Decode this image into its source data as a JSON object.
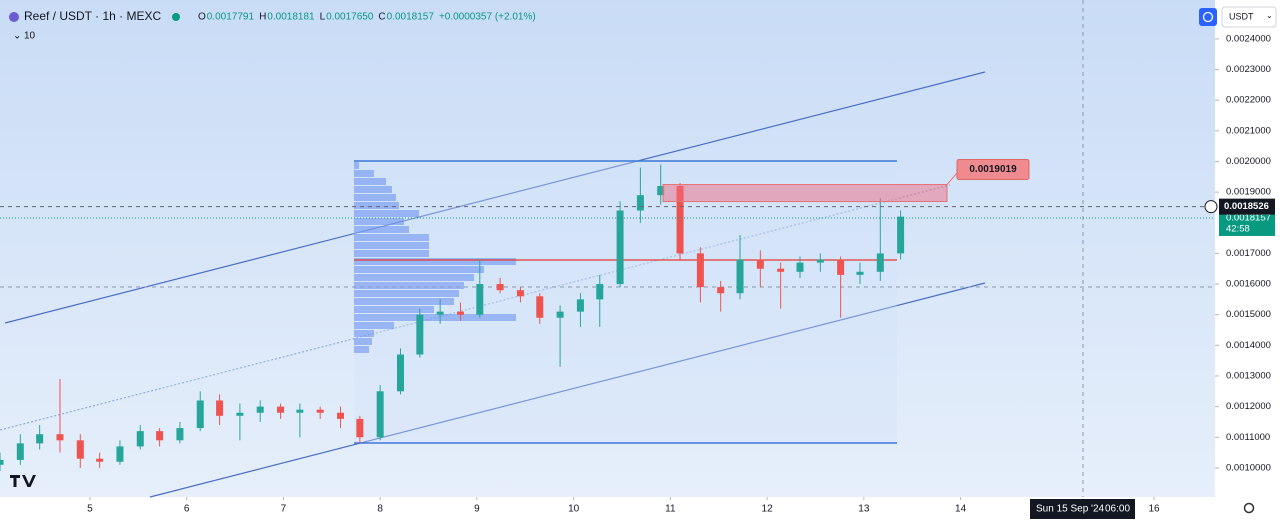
{
  "chart_data": {
    "type": "candlestick",
    "title": "Reef / USDT · 1h · MEXC",
    "ohlc_legend": [
      {
        "label": "O",
        "value": "0.0017791"
      },
      {
        "label": "H",
        "value": "0.0018181"
      },
      {
        "label": "L",
        "value": "0.0017650"
      },
      {
        "label": "C",
        "value": "0.0018157"
      }
    ],
    "change": "+0.0000357 (+2.01%)",
    "indicator_count": "10",
    "currency": "USDT",
    "crosshair_date": "Sun 15 Sep '24",
    "crosshair_time": "06:00",
    "x": [
      4.07,
      4.28,
      4.48,
      4.69,
      4.9,
      5.1,
      5.31,
      5.52,
      5.72,
      5.93,
      6.14,
      6.34,
      6.55,
      6.76,
      6.97,
      7.17,
      7.38,
      7.59,
      7.79,
      8.0,
      8.21,
      8.41,
      8.62,
      8.83,
      9.03,
      9.24,
      9.45,
      9.65,
      9.86,
      10.07,
      10.27,
      10.48,
      10.69,
      10.9,
      11.1,
      11.31,
      11.52,
      11.72,
      11.93,
      12.14,
      12.34,
      12.55,
      12.76,
      12.96,
      13.17,
      13.38
    ],
    "open": [
      0.00101,
      0.001026,
      0.00108,
      0.00111,
      0.00109,
      0.00103,
      0.00102,
      0.00107,
      0.00112,
      0.00109,
      0.00113,
      0.00122,
      0.00117,
      0.00118,
      0.0012,
      0.00118,
      0.00119,
      0.00118,
      0.00116,
      0.0011,
      0.00125,
      0.00137,
      0.0015,
      0.00151,
      0.0015,
      0.0016,
      0.00158,
      0.00156,
      0.00149,
      0.00151,
      0.00155,
      0.0016,
      0.00184,
      0.00189,
      0.00192,
      0.0017,
      0.00159,
      0.00157,
      0.00168,
      0.00165,
      0.00164,
      0.00167,
      0.00168,
      0.00163,
      0.00164,
      0.0017
    ],
    "high": [
      0.00105,
      0.00111,
      0.00114,
      0.00129,
      0.00111,
      0.00105,
      0.00109,
      0.00114,
      0.00113,
      0.00115,
      0.00125,
      0.00124,
      0.00121,
      0.00122,
      0.00121,
      0.00121,
      0.0012,
      0.0012,
      0.00117,
      0.00127,
      0.00139,
      0.00152,
      0.00155,
      0.00154,
      0.00168,
      0.00162,
      0.00159,
      0.00157,
      0.00153,
      0.00157,
      0.00163,
      0.00187,
      0.00198,
      0.00199,
      0.00193,
      0.00172,
      0.00161,
      0.00176,
      0.00171,
      0.00167,
      0.00169,
      0.0017,
      0.00169,
      0.00167,
      0.00188,
      0.00184
    ],
    "low": [
      0.00099,
      0.00101,
      0.00106,
      0.00105,
      0.001,
      0.001,
      0.00101,
      0.00106,
      0.00107,
      0.00108,
      0.00112,
      0.00114,
      0.00109,
      0.00115,
      0.00116,
      0.0011,
      0.00116,
      0.00113,
      0.00108,
      0.00109,
      0.00124,
      0.00136,
      0.00147,
      0.00148,
      0.00149,
      0.00157,
      0.00154,
      0.00147,
      0.00133,
      0.00146,
      0.00146,
      0.00159,
      0.0018,
      0.00186,
      0.00168,
      0.00154,
      0.00151,
      0.00155,
      0.00159,
      0.00152,
      0.00162,
      0.00164,
      0.00149,
      0.0016,
      0.00161,
      0.00168
    ],
    "close": [
      0.001026,
      0.00108,
      0.00111,
      0.00109,
      0.00103,
      0.00102,
      0.00107,
      0.00112,
      0.00109,
      0.00113,
      0.00122,
      0.00117,
      0.00118,
      0.0012,
      0.00118,
      0.00119,
      0.00118,
      0.00116,
      0.0011,
      0.00125,
      0.00137,
      0.0015,
      0.00151,
      0.0015,
      0.0016,
      0.00158,
      0.00156,
      0.00149,
      0.00151,
      0.00155,
      0.0016,
      0.00184,
      0.00189,
      0.00192,
      0.0017,
      0.00159,
      0.00157,
      0.00168,
      0.00165,
      0.00164,
      0.00167,
      0.00168,
      0.00163,
      0.00164,
      0.0017,
      0.00182
    ],
    "up_color": "#26a69a",
    "down_color": "#ef5350",
    "xlim": [
      4.07,
      16.63
    ],
    "xticks": [
      5,
      6,
      7,
      8,
      9,
      10,
      11,
      12,
      13,
      14,
      16
    ],
    "ylim": [
      0.000905,
      0.002527
    ],
    "yticks": [
      {
        "value": 0.0024,
        "label": "0.0024000"
      },
      {
        "value": 0.0023,
        "label": "0.0023000"
      },
      {
        "value": 0.0022,
        "label": "0.0022000"
      },
      {
        "value": 0.0021,
        "label": "0.0021000"
      },
      {
        "value": 0.002,
        "label": "0.0020000"
      },
      {
        "value": 0.0019,
        "label": "0.0019000"
      },
      {
        "value": 0.0017,
        "label": "0.0017000"
      },
      {
        "value": 0.0016,
        "label": "0.0016000"
      },
      {
        "value": 0.0015,
        "label": "0.0015000"
      },
      {
        "value": 0.0014,
        "label": "0.0014000"
      },
      {
        "value": 0.0013,
        "label": "0.0013000"
      },
      {
        "value": 0.0012,
        "label": "0.0012000"
      },
      {
        "value": 0.0011,
        "label": "0.0011000"
      },
      {
        "value": 0.001,
        "label": "0.0010000"
      }
    ],
    "crosshair_price": {
      "value": 0.0018526,
      "label": "0.0018526"
    },
    "last_price": {
      "value": 0.0018157,
      "label": "0.0018157",
      "countdown": "42:58"
    },
    "annotation": {
      "value": 0.0019019,
      "label": "0.0019019"
    }
  }
}
